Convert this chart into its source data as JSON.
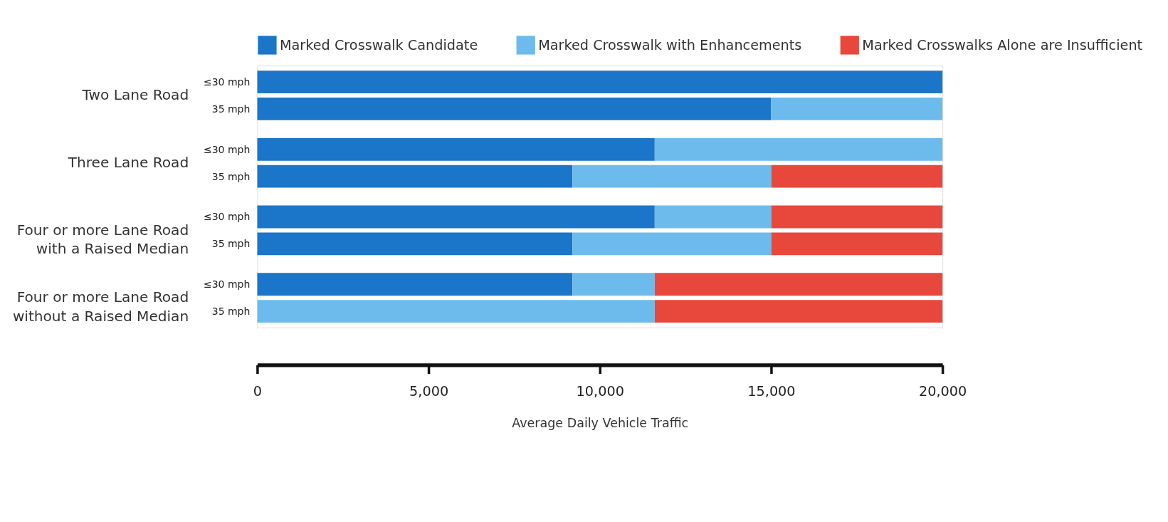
{
  "chart_data": {
    "type": "bar",
    "orientation": "horizontal",
    "stacked": true,
    "categories": [
      "≤30 mph",
      "35 mph",
      "≤30 mph",
      "35 mph",
      "≤30 mph",
      "35 mph",
      "≤30 mph",
      "35 mph"
    ],
    "series": [
      {
        "name": "Marked Crosswalk Candidate",
        "color": "#1b75c9",
        "values": [
          20000,
          15000,
          11600,
          9200,
          11600,
          9200,
          9200,
          0
        ]
      },
      {
        "name": "Marked Crosswalk with Enhancements",
        "color": "#6dbbec",
        "values": [
          0,
          5000,
          8400,
          5800,
          3400,
          5800,
          2400,
          11600
        ]
      },
      {
        "name": "Marked Crosswalks Alone are Insufficient",
        "color": "#e8483b",
        "values": [
          0,
          0,
          0,
          5000,
          5000,
          5000,
          8400,
          8400
        ]
      }
    ],
    "xlim": [
      0,
      20000
    ],
    "xticks": [
      {
        "value": 0,
        "label": "0"
      },
      {
        "value": 5000,
        "label": "5,000"
      },
      {
        "value": 10000,
        "label": "10,000"
      },
      {
        "value": 15000,
        "label": "15,000"
      },
      {
        "value": 20000,
        "label": "20,000"
      }
    ],
    "xlabel": "Average Daily Vehicle Traffic",
    "annotations": [
      "Two Lane Road",
      "Three Lane Road",
      "Four or more Lane Road\nwith a Raised Median",
      "Four or more Lane Road\nwithout a Raised Median"
    ],
    "legend": "top",
    "grid": false
  }
}
